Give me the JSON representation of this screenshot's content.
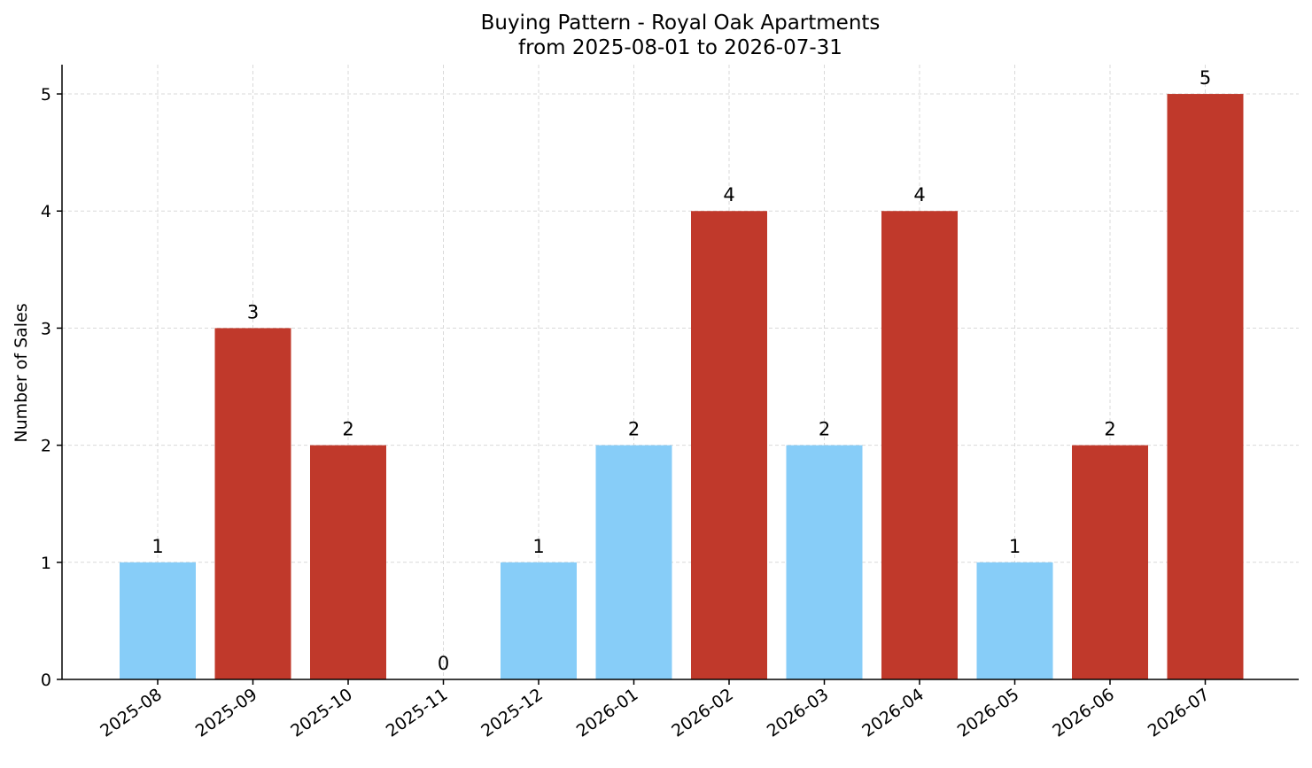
{
  "chart_data": {
    "type": "bar",
    "title": "Buying Pattern - Royal Oak Apartments",
    "subtitle": "from 2025-08-01 to 2026-07-31",
    "xlabel": "",
    "ylabel": "Number of Sales",
    "ylim": [
      0,
      5.25
    ],
    "yticks": [
      0,
      1,
      2,
      3,
      4,
      5
    ],
    "grid": true,
    "categories": [
      "2025-08",
      "2025-09",
      "2025-10",
      "2025-11",
      "2025-12",
      "2026-01",
      "2026-02",
      "2026-03",
      "2026-04",
      "2026-05",
      "2026-06",
      "2026-07"
    ],
    "values": [
      1,
      3,
      2,
      0,
      1,
      2,
      4,
      2,
      4,
      1,
      2,
      5
    ],
    "bar_colors": [
      "#87cdf8",
      "#c0392b",
      "#c0392b",
      "#87cdf8",
      "#87cdf8",
      "#87cdf8",
      "#c0392b",
      "#87cdf8",
      "#c0392b",
      "#87cdf8",
      "#c0392b",
      "#c0392b"
    ],
    "data_labels": true
  }
}
